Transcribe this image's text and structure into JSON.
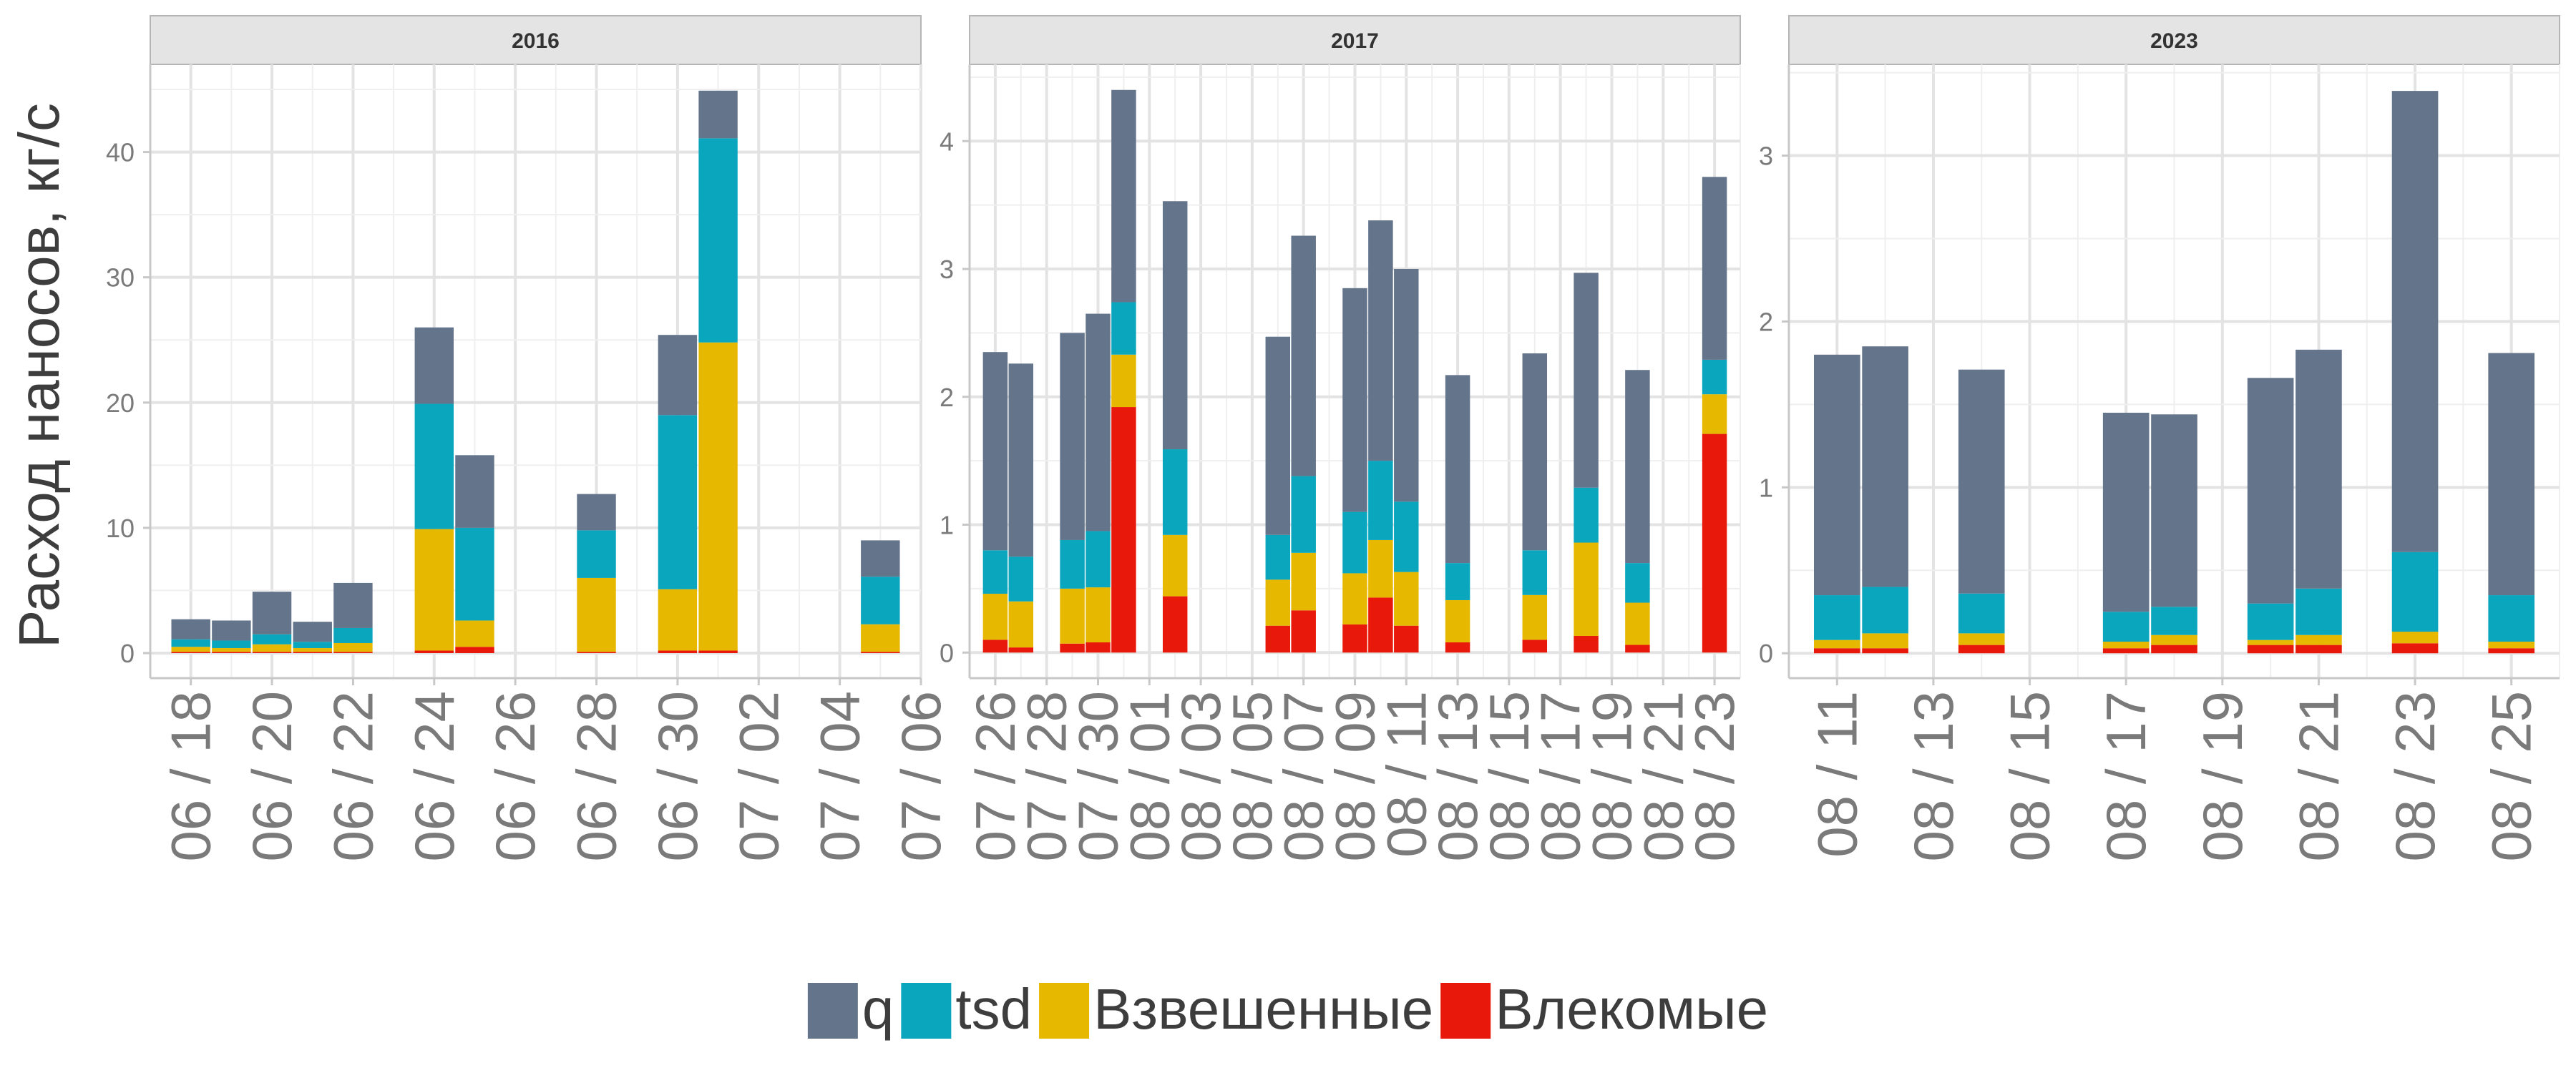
{
  "ylabel": "Расход наносов, кг/с",
  "legend": {
    "position": "bottom",
    "items": [
      {
        "key": "q",
        "label": "q",
        "color": "#64748b"
      },
      {
        "key": "tsd",
        "label": "tsd",
        "color": "#0aa6bd"
      },
      {
        "key": "suspended",
        "label": "Взвешенные",
        "color": "#e6b800"
      },
      {
        "key": "bedload",
        "label": "Влекомые",
        "color": "#e8180a"
      }
    ]
  },
  "chart_data": [
    {
      "type": "bar",
      "stacked": true,
      "facet": "2016",
      "x_ticks": [
        "06 / 18",
        "06 / 20",
        "06 / 22",
        "06 / 24",
        "06 / 26",
        "06 / 28",
        "06 / 30",
        "07 / 02",
        "07 / 04",
        "07 / 06"
      ],
      "y_ticks": [
        0,
        10,
        20,
        30,
        40
      ],
      "ylim": [
        -2,
        47
      ],
      "xlim": [
        "06 / 17",
        "07 / 06"
      ],
      "grid": true,
      "bars": [
        {
          "date": "06 / 18",
          "bedload": 0.1,
          "suspended": 0.4,
          "tsd": 0.6,
          "q": 1.6
        },
        {
          "date": "06 / 19",
          "bedload": 0.1,
          "suspended": 0.3,
          "tsd": 0.6,
          "q": 1.6
        },
        {
          "date": "06 / 20",
          "bedload": 0.1,
          "suspended": 0.6,
          "tsd": 0.8,
          "q": 3.4
        },
        {
          "date": "06 / 21",
          "bedload": 0.1,
          "suspended": 0.3,
          "tsd": 0.5,
          "q": 1.6
        },
        {
          "date": "06 / 22",
          "bedload": 0.1,
          "suspended": 0.7,
          "tsd": 1.2,
          "q": 3.6
        },
        {
          "date": "06 / 24",
          "bedload": 0.2,
          "suspended": 9.7,
          "tsd": 10.0,
          "q": 6.1
        },
        {
          "date": "06 / 25",
          "bedload": 0.5,
          "suspended": 2.1,
          "tsd": 7.4,
          "q": 5.8
        },
        {
          "date": "06 / 28",
          "bedload": 0.1,
          "suspended": 5.9,
          "tsd": 3.8,
          "q": 2.9
        },
        {
          "date": "06 / 30",
          "bedload": 0.2,
          "suspended": 4.9,
          "tsd": 13.9,
          "q": 6.4
        },
        {
          "date": "07 / 01",
          "bedload": 0.2,
          "suspended": 24.6,
          "tsd": 16.3,
          "q": 3.8
        },
        {
          "date": "07 / 05",
          "bedload": 0.1,
          "suspended": 2.2,
          "tsd": 3.8,
          "q": 2.9
        }
      ]
    },
    {
      "type": "bar",
      "stacked": true,
      "facet": "2017",
      "x_ticks": [
        "07 / 26",
        "07 / 28",
        "07 / 30",
        "08 / 01",
        "08 / 03",
        "08 / 05",
        "08 / 07",
        "08 / 09",
        "08 / 11",
        "08 / 13",
        "08 / 15",
        "08 / 17",
        "08 / 19",
        "08 / 21",
        "08 / 23"
      ],
      "y_ticks": [
        0,
        1,
        2,
        3,
        4
      ],
      "ylim": [
        -0.2,
        4.6
      ],
      "xlim": [
        "07 / 25",
        "08 / 24"
      ],
      "grid": true,
      "bars": [
        {
          "date": "07 / 26",
          "bedload": 0.1,
          "suspended": 0.36,
          "tsd": 0.34,
          "q": 1.55
        },
        {
          "date": "07 / 27",
          "bedload": 0.04,
          "suspended": 0.36,
          "tsd": 0.35,
          "q": 1.51
        },
        {
          "date": "07 / 29",
          "bedload": 0.07,
          "suspended": 0.43,
          "tsd": 0.38,
          "q": 1.62
        },
        {
          "date": "07 / 30",
          "bedload": 0.08,
          "suspended": 0.43,
          "tsd": 0.44,
          "q": 1.7
        },
        {
          "date": "07 / 31",
          "bedload": 1.92,
          "suspended": 0.41,
          "tsd": 0.41,
          "q": 1.66
        },
        {
          "date": "08 / 02",
          "bedload": 0.44,
          "suspended": 0.48,
          "tsd": 0.67,
          "q": 1.94
        },
        {
          "date": "08 / 06",
          "bedload": 0.21,
          "suspended": 0.36,
          "tsd": 0.35,
          "q": 1.55
        },
        {
          "date": "08 / 07",
          "bedload": 0.33,
          "suspended": 0.45,
          "tsd": 0.6,
          "q": 1.88
        },
        {
          "date": "08 / 09",
          "bedload": 0.22,
          "suspended": 0.4,
          "tsd": 0.48,
          "q": 1.75
        },
        {
          "date": "08 / 10",
          "bedload": 0.43,
          "suspended": 0.45,
          "tsd": 0.62,
          "q": 1.88
        },
        {
          "date": "08 / 11",
          "bedload": 0.21,
          "suspended": 0.42,
          "tsd": 0.55,
          "q": 1.82
        },
        {
          "date": "08 / 13",
          "bedload": 0.08,
          "suspended": 0.33,
          "tsd": 0.29,
          "q": 1.47
        },
        {
          "date": "08 / 16",
          "bedload": 0.1,
          "suspended": 0.35,
          "tsd": 0.35,
          "q": 1.54
        },
        {
          "date": "08 / 18",
          "bedload": 0.13,
          "suspended": 0.73,
          "tsd": 0.43,
          "q": 1.68
        },
        {
          "date": "08 / 20",
          "bedload": 0.06,
          "suspended": 0.33,
          "tsd": 0.31,
          "q": 1.51
        },
        {
          "date": "08 / 23",
          "bedload": 1.71,
          "suspended": 0.31,
          "tsd": 0.27,
          "q": 1.43
        }
      ]
    },
    {
      "type": "bar",
      "stacked": true,
      "facet": "2023",
      "x_ticks": [
        "08 / 11",
        "08 / 13",
        "08 / 15",
        "08 / 17",
        "08 / 19",
        "08 / 21",
        "08 / 23",
        "08 / 25"
      ],
      "y_ticks": [
        0,
        1,
        2,
        3
      ],
      "ylim": [
        -0.15,
        3.55
      ],
      "xlim": [
        "08 / 10",
        "08 / 26"
      ],
      "grid": true,
      "bars": [
        {
          "date": "08 / 11",
          "bedload": 0.03,
          "suspended": 0.05,
          "tsd": 0.27,
          "q": 1.45
        },
        {
          "date": "08 / 12",
          "bedload": 0.03,
          "suspended": 0.09,
          "tsd": 0.28,
          "q": 1.45
        },
        {
          "date": "08 / 14",
          "bedload": 0.05,
          "suspended": 0.07,
          "tsd": 0.24,
          "q": 1.35
        },
        {
          "date": "08 / 17",
          "bedload": 0.03,
          "suspended": 0.04,
          "tsd": 0.18,
          "q": 1.2
        },
        {
          "date": "08 / 18",
          "bedload": 0.05,
          "suspended": 0.06,
          "tsd": 0.17,
          "q": 1.16
        },
        {
          "date": "08 / 20",
          "bedload": 0.05,
          "suspended": 0.03,
          "tsd": 0.22,
          "q": 1.36
        },
        {
          "date": "08 / 21",
          "bedload": 0.05,
          "suspended": 0.06,
          "tsd": 0.28,
          "q": 1.44
        },
        {
          "date": "08 / 23",
          "bedload": 0.06,
          "suspended": 0.07,
          "tsd": 0.48,
          "q": 2.78
        },
        {
          "date": "08 / 25",
          "bedload": 0.03,
          "suspended": 0.04,
          "tsd": 0.28,
          "q": 1.46
        }
      ]
    }
  ]
}
